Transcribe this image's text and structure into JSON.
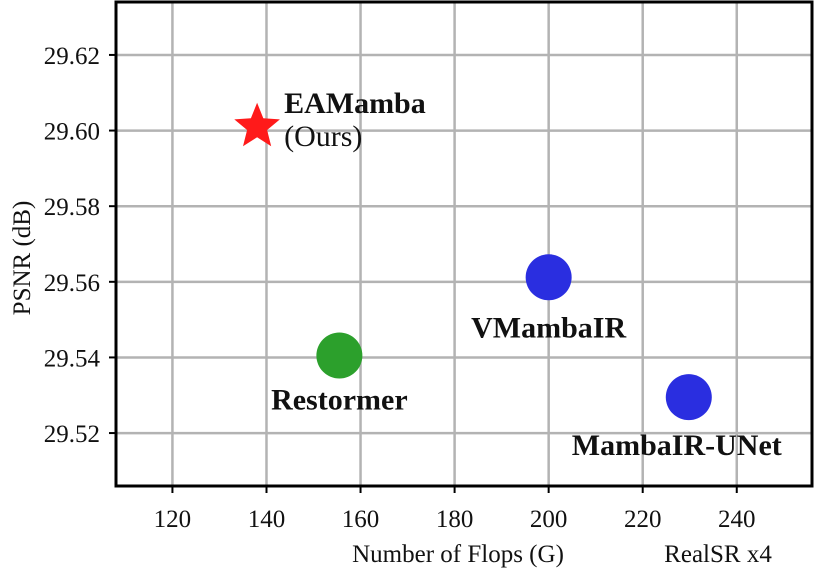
{
  "chart_data": {
    "type": "scatter",
    "xlabel": "Number of Flops (G)",
    "ylabel": "PSNR (dB)",
    "annotation": "RealSR x4",
    "xlim": [
      108,
      256
    ],
    "ylim": [
      29.506,
      29.634
    ],
    "xticks": [
      120,
      140,
      160,
      180,
      200,
      220,
      240
    ],
    "yticks": [
      29.52,
      29.54,
      29.56,
      29.58,
      29.6,
      29.62
    ],
    "ytick_labels": [
      "29.52",
      "29.54",
      "29.56",
      "29.58",
      "29.60",
      "29.62"
    ],
    "grid": true,
    "points": [
      {
        "name": "EAMamba",
        "sub": "(Ours)",
        "x": 138,
        "y": 29.601,
        "color": "#ff1a1a",
        "marker": "star"
      },
      {
        "name": "Restormer",
        "x": 155.5,
        "y": 29.5405,
        "color": "#2ca02c",
        "marker": "circle"
      },
      {
        "name": "VMambaIR",
        "x": 200,
        "y": 29.5612,
        "color": "#2a2ee0",
        "marker": "circle"
      },
      {
        "name": "MambaIR-UNet",
        "x": 229.8,
        "y": 29.5295,
        "color": "#2a2ee0",
        "marker": "circle"
      }
    ]
  }
}
